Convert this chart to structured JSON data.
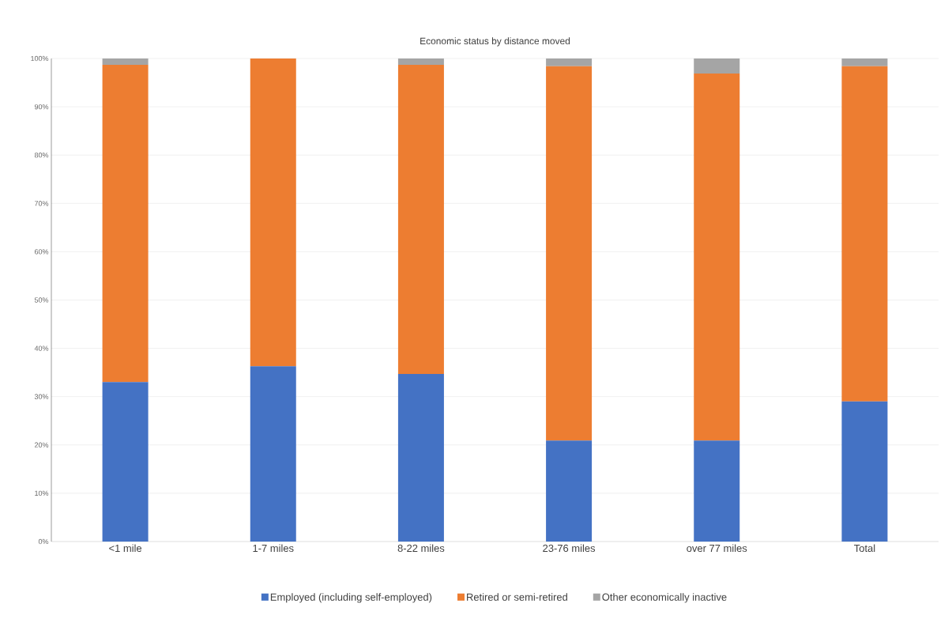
{
  "chart_data": {
    "type": "bar",
    "stacked": true,
    "title": "Economic status by distance moved",
    "categories": [
      "<1 mile",
      "1-7 miles",
      "8-22 miles",
      "23-76 miles",
      "over 77 miles",
      "Total"
    ],
    "series": [
      {
        "name": "Employed (including self-employed)",
        "color": "#4472c4",
        "values": [
          33.0,
          36.3,
          34.7,
          20.9,
          20.9,
          29.0
        ]
      },
      {
        "name": "Retired or semi-retired",
        "color": "#ed7d31",
        "values": [
          65.7,
          63.7,
          64.0,
          77.5,
          76.0,
          69.4
        ]
      },
      {
        "name": "Other economically inactive",
        "color": "#a5a5a5",
        "values": [
          1.3,
          0,
          1.3,
          1.6,
          3.1,
          1.6
        ]
      }
    ],
    "ylim": [
      0,
      100
    ],
    "yticks": [
      {
        "value": 0,
        "label": "0%"
      },
      {
        "value": 10,
        "label": "10%"
      },
      {
        "value": 20,
        "label": "20%"
      },
      {
        "value": 30,
        "label": "30%"
      },
      {
        "value": 40,
        "label": "40%"
      },
      {
        "value": 50,
        "label": "50%"
      },
      {
        "value": 60,
        "label": "60%"
      },
      {
        "value": 70,
        "label": "70%"
      },
      {
        "value": 80,
        "label": "80%"
      },
      {
        "value": 90,
        "label": "90%"
      },
      {
        "value": 100,
        "label": "100%"
      }
    ],
    "grid": "y",
    "legend": "bottom"
  }
}
